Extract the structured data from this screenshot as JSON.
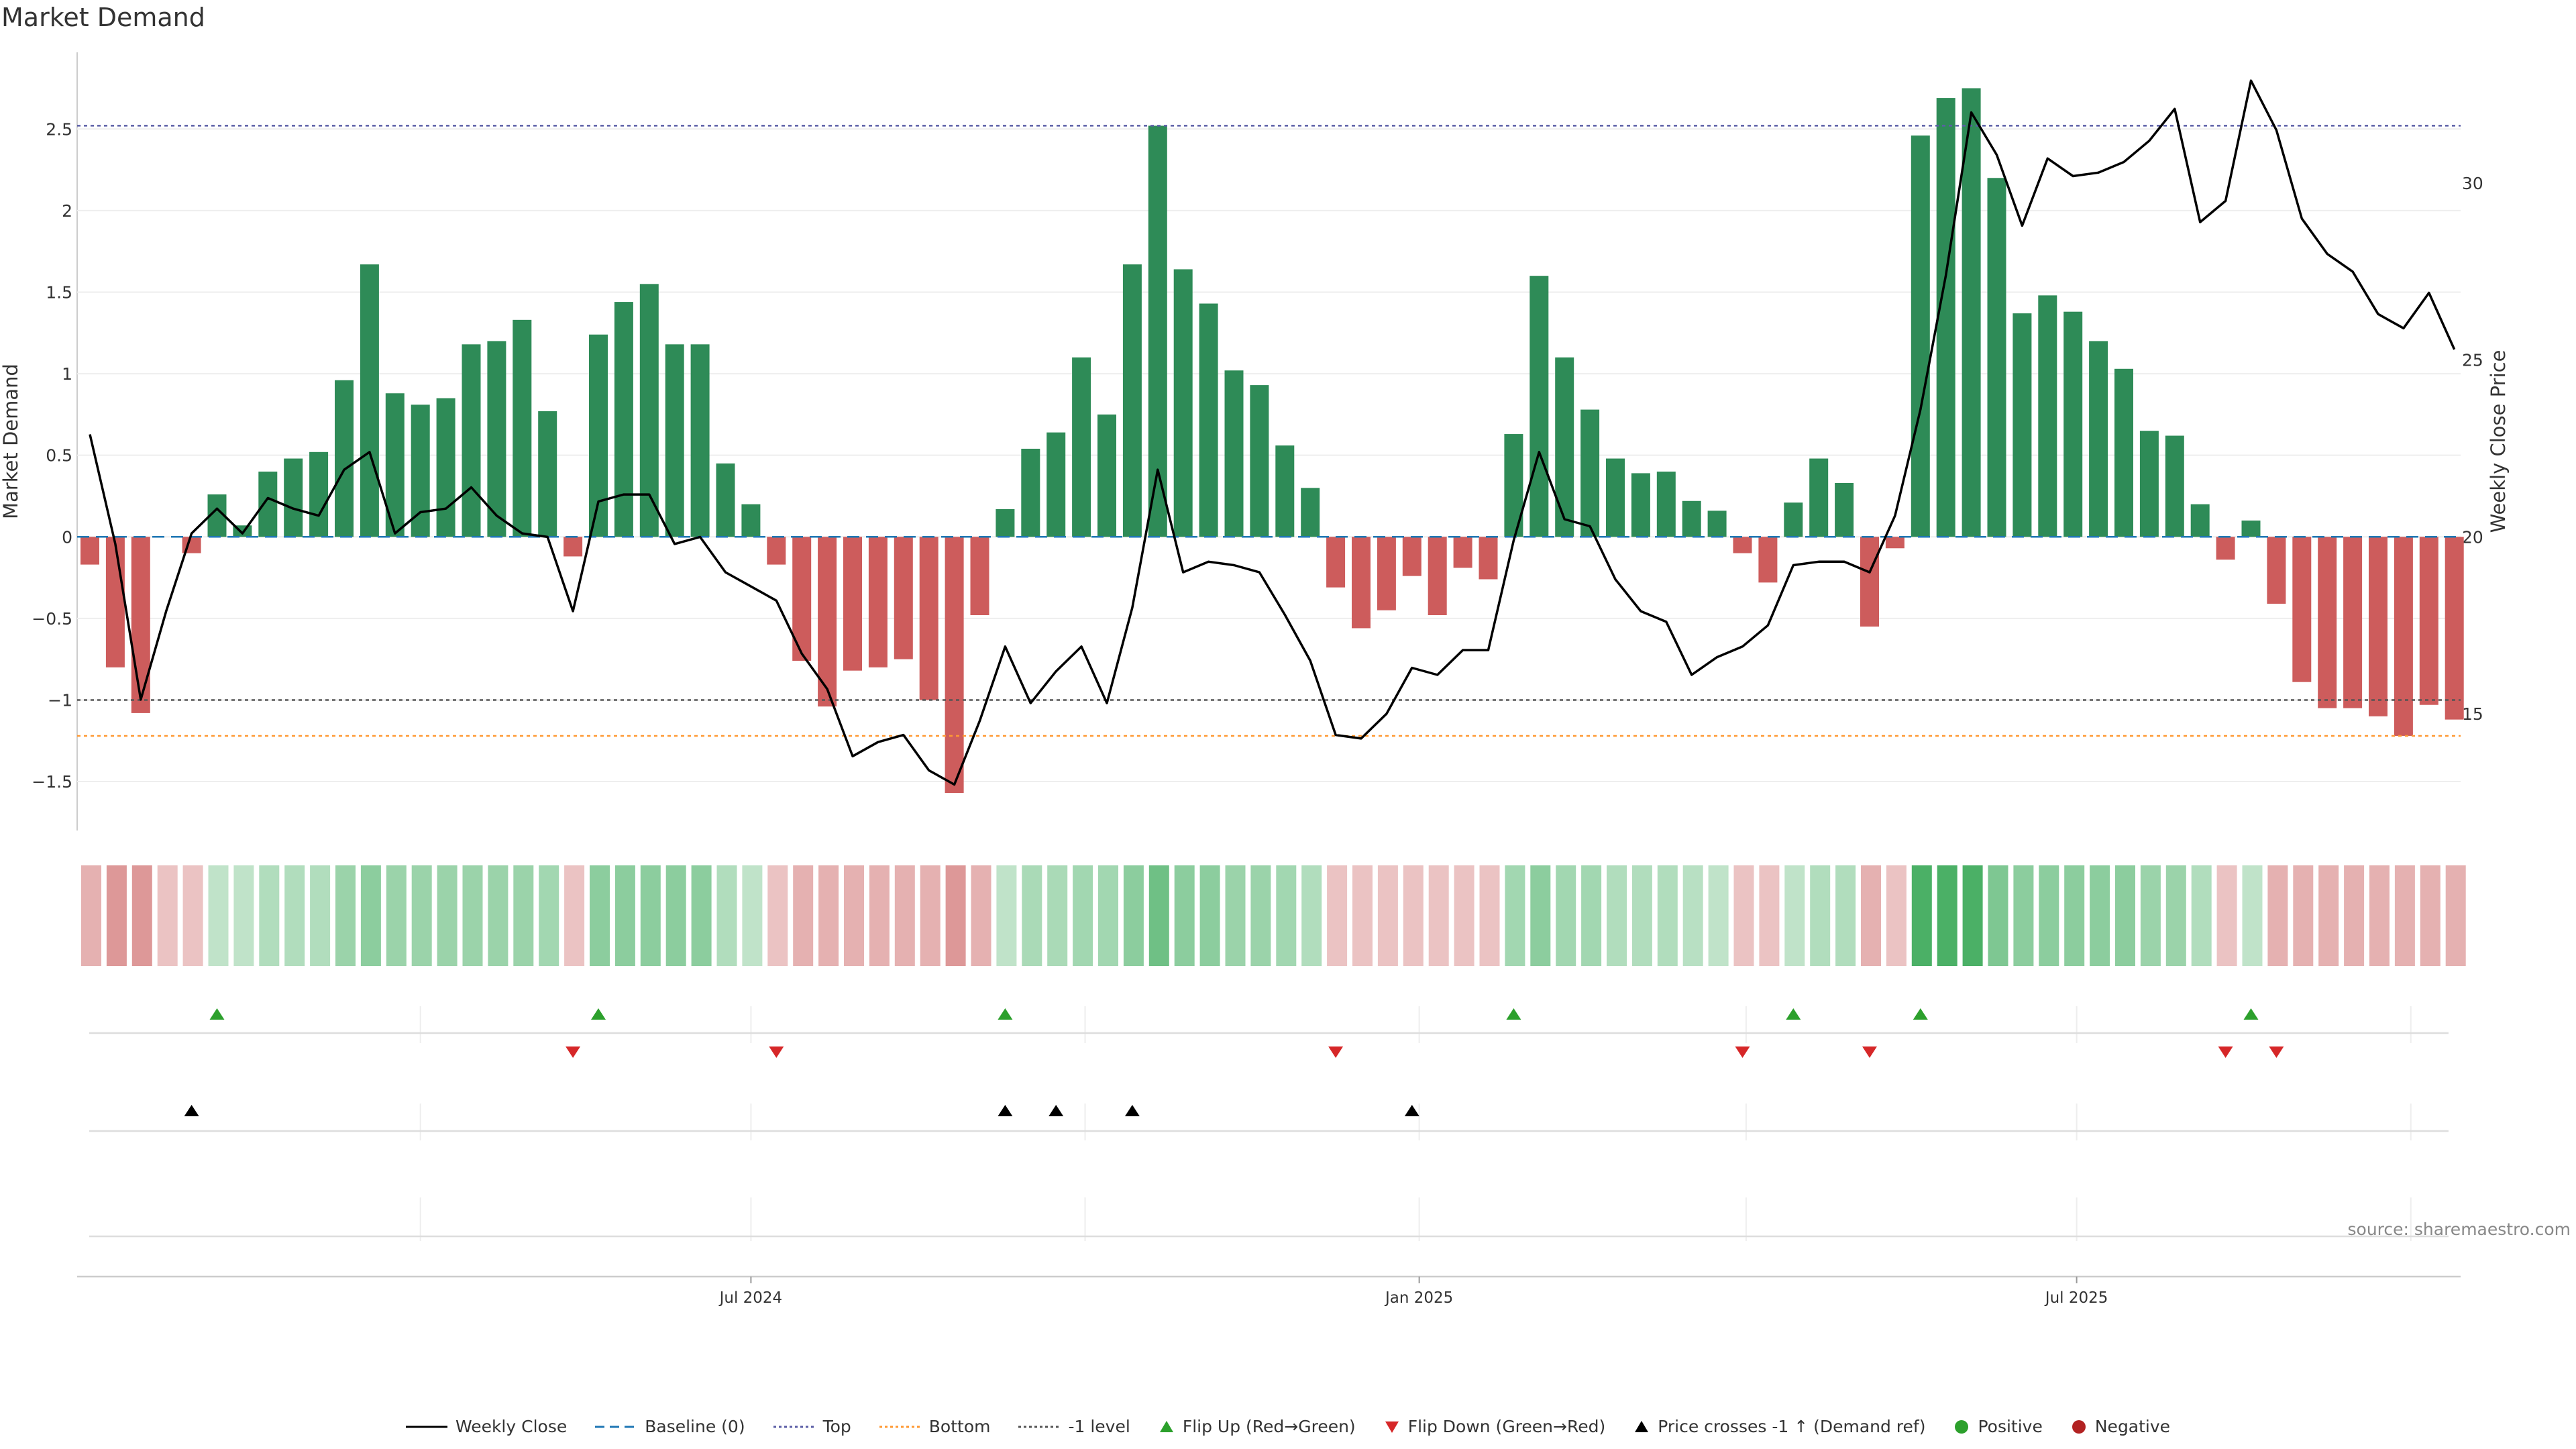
{
  "title": "Market Demand",
  "source": "source: sharemaestro.com",
  "colors": {
    "positive": "#2e8b57",
    "negative": "#cd5c5c",
    "price": "#000000",
    "top": "#5b5ea6",
    "bottom": "#ff9933",
    "minus1": "#555555",
    "baseline": "#1f77b4",
    "flip_up": "#2ca02c",
    "flip_down": "#d62728",
    "cross": "#000000"
  },
  "chart_data": {
    "type": "bar+line",
    "title": "Market Demand",
    "ylabel": "Market Demand",
    "y2label": "Weekly Close Price",
    "ylim": [
      -1.8,
      2.97
    ],
    "y2lim": [
      11.7,
      33.7
    ],
    "yticks": [
      -1.5,
      -1,
      -0.5,
      0,
      0.5,
      1,
      1.5,
      2,
      2.5
    ],
    "ytick_labels": [
      "−1.5",
      "−1",
      "−0.5",
      "0",
      "0.5",
      "1",
      "1.5",
      "2",
      "2.5"
    ],
    "y2ticks": [
      15,
      20,
      25,
      30
    ],
    "y2tick_labels": [
      "15",
      "20",
      "25",
      "30"
    ],
    "x_start": "2024-01-01",
    "week_interval_days": 7,
    "xticks": [
      {
        "date": "2024-07-01",
        "label": "Jul 2024"
      },
      {
        "date": "2025-01-01",
        "label": "Jan 2025"
      },
      {
        "date": "2025-07-01",
        "label": "Jul 2025"
      }
    ],
    "top_level": 2.52,
    "bottom_level": -1.22,
    "minus1_level": -1.0,
    "demand": [
      -0.17,
      -0.8,
      -1.08,
      0,
      -0.1,
      0.26,
      0.07,
      0.4,
      0.48,
      0.52,
      0.96,
      1.67,
      0.88,
      0.81,
      0.85,
      1.18,
      1.2,
      1.33,
      0.77,
      -0.12,
      1.24,
      1.44,
      1.55,
      1.18,
      1.18,
      0.45,
      0.2,
      -0.17,
      -0.76,
      -1.04,
      -0.82,
      -0.8,
      -0.75,
      -1.0,
      -1.57,
      -0.48,
      0.17,
      0.54,
      0.64,
      1.1,
      0.75,
      1.67,
      2.52,
      1.64,
      1.43,
      1.02,
      0.93,
      0.56,
      0.3,
      -0.31,
      -0.56,
      -0.45,
      -0.24,
      -0.48,
      -0.19,
      -0.26,
      0.63,
      1.6,
      1.1,
      0.78,
      0.48,
      0.39,
      0.4,
      0.22,
      0.16,
      -0.1,
      -0.28,
      0.21,
      0.48,
      0.33,
      -0.55,
      -0.07,
      2.46,
      2.69,
      2.75,
      2.2,
      1.37,
      1.48,
      1.38,
      1.2,
      1.03,
      0.65,
      0.62,
      0.2,
      -0.14,
      0.1,
      -0.41,
      -0.89,
      -1.05,
      -1.05,
      -1.1,
      -1.22,
      -1.03,
      -1.12
    ],
    "price": [
      22.9,
      19.8,
      15.4,
      17.9,
      20.1,
      20.8,
      20.1,
      21.1,
      20.8,
      20.6,
      21.9,
      22.4,
      20.1,
      20.7,
      20.8,
      21.4,
      20.6,
      20.1,
      20.0,
      17.9,
      21.0,
      21.2,
      21.2,
      19.8,
      20.0,
      19.0,
      18.6,
      18.2,
      16.7,
      15.7,
      13.8,
      14.2,
      14.4,
      13.4,
      13.0,
      14.8,
      16.9,
      15.3,
      16.2,
      16.9,
      15.3,
      18.0,
      21.9,
      19.0,
      19.3,
      19.2,
      19.0,
      17.8,
      16.5,
      14.4,
      14.3,
      15.0,
      16.3,
      16.1,
      16.8,
      16.8,
      19.9,
      22.4,
      20.5,
      20.3,
      18.8,
      17.9,
      17.6,
      16.1,
      16.6,
      16.9,
      17.5,
      19.2,
      19.3,
      19.3,
      19.0,
      20.6,
      23.6,
      27.4,
      32.0,
      30.8,
      28.8,
      30.7,
      30.2,
      30.3,
      30.6,
      31.2,
      32.1,
      28.9,
      29.5,
      32.9,
      31.5,
      29.0,
      28.0,
      27.5,
      26.3,
      25.9,
      26.9,
      25.3
    ],
    "strip_shades": [
      -0.3,
      -0.5,
      -0.5,
      -0.15,
      -0.15,
      0.1,
      0.1,
      0.2,
      0.2,
      0.2,
      0.35,
      0.45,
      0.35,
      0.35,
      0.35,
      0.35,
      0.35,
      0.35,
      0.3,
      -0.15,
      0.45,
      0.45,
      0.45,
      0.45,
      0.45,
      0.2,
      0.1,
      -0.15,
      -0.3,
      -0.3,
      -0.3,
      -0.3,
      -0.3,
      -0.3,
      -0.5,
      -0.3,
      0.1,
      0.25,
      0.25,
      0.3,
      0.3,
      0.45,
      0.65,
      0.45,
      0.45,
      0.35,
      0.35,
      0.3,
      0.2,
      -0.15,
      -0.15,
      -0.15,
      -0.15,
      -0.15,
      -0.15,
      -0.15,
      0.3,
      0.45,
      0.3,
      0.3,
      0.2,
      0.2,
      0.2,
      0.15,
      0.1,
      -0.15,
      -0.15,
      0.1,
      0.2,
      0.2,
      -0.3,
      -0.15,
      0.9,
      0.9,
      0.9,
      0.55,
      0.45,
      0.45,
      0.45,
      0.45,
      0.45,
      0.35,
      0.35,
      0.2,
      -0.15,
      0.1,
      -0.3,
      -0.3,
      -0.3,
      -0.3,
      -0.3,
      -0.3,
      -0.3,
      -0.3
    ],
    "flip_up_idx": [
      5,
      20,
      36,
      56,
      67,
      72,
      85
    ],
    "flip_down_idx": [
      19,
      27,
      49,
      65,
      70,
      84,
      86
    ],
    "cross_idx": [
      4,
      36,
      38,
      41,
      52
    ]
  },
  "legend": {
    "items": [
      {
        "label": "Weekly Close",
        "kind": "line-solid",
        "color": "#000000"
      },
      {
        "label": "Baseline (0)",
        "kind": "line-dash",
        "color": "#1f77b4"
      },
      {
        "label": "Top",
        "kind": "line-dot",
        "color": "#5b5ea6"
      },
      {
        "label": "Bottom",
        "kind": "line-dot",
        "color": "#ff9933"
      },
      {
        "label": "-1 level",
        "kind": "line-dot",
        "color": "#555555"
      },
      {
        "label": "Flip Up (Red→Green)",
        "kind": "tri-up",
        "color": "#2ca02c"
      },
      {
        "label": "Flip Down (Green→Red)",
        "kind": "tri-down",
        "color": "#d62728"
      },
      {
        "label": "Price crosses -1 ↑ (Demand ref)",
        "kind": "tri-up",
        "color": "#000000"
      },
      {
        "label": "Positive",
        "kind": "dot",
        "color": "#2ca02c"
      },
      {
        "label": "Negative",
        "kind": "dot",
        "color": "#b22222"
      }
    ]
  }
}
